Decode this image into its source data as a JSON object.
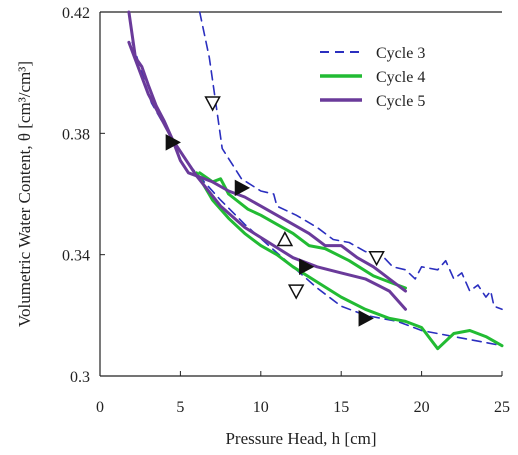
{
  "chart_data": {
    "type": "line",
    "xlabel": "Pressure Head, h [cm]",
    "ylabel": "Volumetric Water Content, θ [cm³/cm³]",
    "xlim": [
      0,
      25
    ],
    "ylim": [
      0.3,
      0.42
    ],
    "x_ticks": [
      "0",
      "5",
      "10",
      "15",
      "20",
      "25"
    ],
    "y_ticks": [
      "0.3",
      "0.34",
      "0.38",
      "0.42"
    ],
    "grid": false,
    "legend_position": "top-right",
    "series": [
      {
        "name": "Cycle 3",
        "color": "#2b2fbf",
        "dash": true,
        "points": [
          [
            6.2,
            0.42
          ],
          [
            6.8,
            0.405
          ],
          [
            7.2,
            0.39
          ],
          [
            7.6,
            0.375
          ],
          [
            8.8,
            0.365
          ],
          [
            10.0,
            0.361
          ],
          [
            10.8,
            0.36
          ],
          [
            11.0,
            0.356
          ],
          [
            12.2,
            0.353
          ],
          [
            13.5,
            0.349
          ],
          [
            14.5,
            0.345
          ],
          [
            15.5,
            0.344
          ],
          [
            16.5,
            0.341
          ],
          [
            17.5,
            0.34
          ],
          [
            18.2,
            0.336
          ],
          [
            19.0,
            0.335
          ],
          [
            19.6,
            0.332
          ],
          [
            20.0,
            0.336
          ],
          [
            21.0,
            0.335
          ],
          [
            21.5,
            0.338
          ],
          [
            22.0,
            0.332
          ],
          [
            22.5,
            0.334
          ],
          [
            23.0,
            0.328
          ],
          [
            23.5,
            0.33
          ],
          [
            24.0,
            0.326
          ],
          [
            24.3,
            0.328
          ],
          [
            24.5,
            0.323
          ],
          [
            25.0,
            0.322
          ]
        ],
        "points_lower": [
          [
            2.0,
            0.41
          ],
          [
            3.2,
            0.39
          ],
          [
            4.5,
            0.378
          ],
          [
            5.8,
            0.368
          ],
          [
            7.5,
            0.358
          ],
          [
            9.0,
            0.35
          ],
          [
            10.5,
            0.343
          ],
          [
            12.0,
            0.336
          ],
          [
            13.5,
            0.329
          ],
          [
            15.0,
            0.323
          ],
          [
            16.5,
            0.32
          ],
          [
            18.5,
            0.318
          ],
          [
            20.0,
            0.315
          ],
          [
            22.0,
            0.313
          ],
          [
            24.0,
            0.311
          ],
          [
            25.0,
            0.31
          ]
        ]
      },
      {
        "name": "Cycle 4",
        "color": "#22bb33",
        "dash": false,
        "points": [
          [
            6.2,
            0.367
          ],
          [
            7.0,
            0.364
          ],
          [
            7.5,
            0.365
          ],
          [
            8.0,
            0.36
          ],
          [
            9.2,
            0.355
          ],
          [
            10.0,
            0.353
          ],
          [
            11.0,
            0.35
          ],
          [
            12.0,
            0.347
          ],
          [
            13.0,
            0.343
          ],
          [
            14.0,
            0.342
          ],
          [
            15.5,
            0.338
          ],
          [
            17.0,
            0.333
          ],
          [
            18.0,
            0.331
          ],
          [
            19.0,
            0.329
          ]
        ],
        "points_lower": [
          [
            6.0,
            0.367
          ],
          [
            7.0,
            0.358
          ],
          [
            8.0,
            0.352
          ],
          [
            9.0,
            0.347
          ],
          [
            10.0,
            0.343
          ],
          [
            11.0,
            0.34
          ],
          [
            12.0,
            0.336
          ],
          [
            13.5,
            0.331
          ],
          [
            15.0,
            0.326
          ],
          [
            16.5,
            0.322
          ],
          [
            18.0,
            0.319
          ],
          [
            19.0,
            0.318
          ],
          [
            20.0,
            0.316
          ],
          [
            21.0,
            0.309
          ],
          [
            22.0,
            0.314
          ],
          [
            23.0,
            0.315
          ],
          [
            24.0,
            0.313
          ],
          [
            25.0,
            0.31
          ]
        ]
      },
      {
        "name": "Cycle 5",
        "color": "#6a3a9a",
        "dash": false,
        "points": [
          [
            1.8,
            0.42
          ],
          [
            2.2,
            0.405
          ],
          [
            2.6,
            0.402
          ],
          [
            3.0,
            0.396
          ],
          [
            3.5,
            0.389
          ],
          [
            4.0,
            0.384
          ],
          [
            4.5,
            0.378
          ],
          [
            5.0,
            0.371
          ],
          [
            5.5,
            0.367
          ],
          [
            6.0,
            0.366
          ],
          [
            7.0,
            0.364
          ],
          [
            8.0,
            0.361
          ],
          [
            9.0,
            0.359
          ],
          [
            10.0,
            0.356
          ],
          [
            11.0,
            0.353
          ],
          [
            12.0,
            0.35
          ],
          [
            13.0,
            0.347
          ],
          [
            14.0,
            0.343
          ],
          [
            15.0,
            0.343
          ],
          [
            16.0,
            0.339
          ],
          [
            17.0,
            0.336
          ],
          [
            18.0,
            0.332
          ],
          [
            19.0,
            0.328
          ]
        ],
        "points_lower": [
          [
            1.8,
            0.41
          ],
          [
            3.0,
            0.393
          ],
          [
            4.5,
            0.378
          ],
          [
            6.0,
            0.366
          ],
          [
            7.5,
            0.356
          ],
          [
            9.0,
            0.349
          ],
          [
            10.5,
            0.344
          ],
          [
            12.0,
            0.339
          ],
          [
            13.5,
            0.336
          ],
          [
            15.0,
            0.334
          ],
          [
            16.5,
            0.332
          ],
          [
            18.0,
            0.328
          ],
          [
            19.0,
            0.322
          ]
        ]
      }
    ],
    "markers": [
      {
        "shape": "triangle-down",
        "filled": false,
        "x": 7.0,
        "y": 0.39
      },
      {
        "shape": "triangle-right",
        "filled": true,
        "x": 4.5,
        "y": 0.377
      },
      {
        "shape": "triangle-right",
        "filled": true,
        "x": 8.8,
        "y": 0.362
      },
      {
        "shape": "triangle-up",
        "filled": false,
        "x": 11.5,
        "y": 0.345
      },
      {
        "shape": "triangle-down",
        "filled": false,
        "x": 17.2,
        "y": 0.339
      },
      {
        "shape": "triangle-right",
        "filled": true,
        "x": 12.8,
        "y": 0.336
      },
      {
        "shape": "triangle-down",
        "filled": false,
        "x": 12.2,
        "y": 0.328
      },
      {
        "shape": "triangle-right",
        "filled": true,
        "x": 16.5,
        "y": 0.319
      }
    ]
  }
}
